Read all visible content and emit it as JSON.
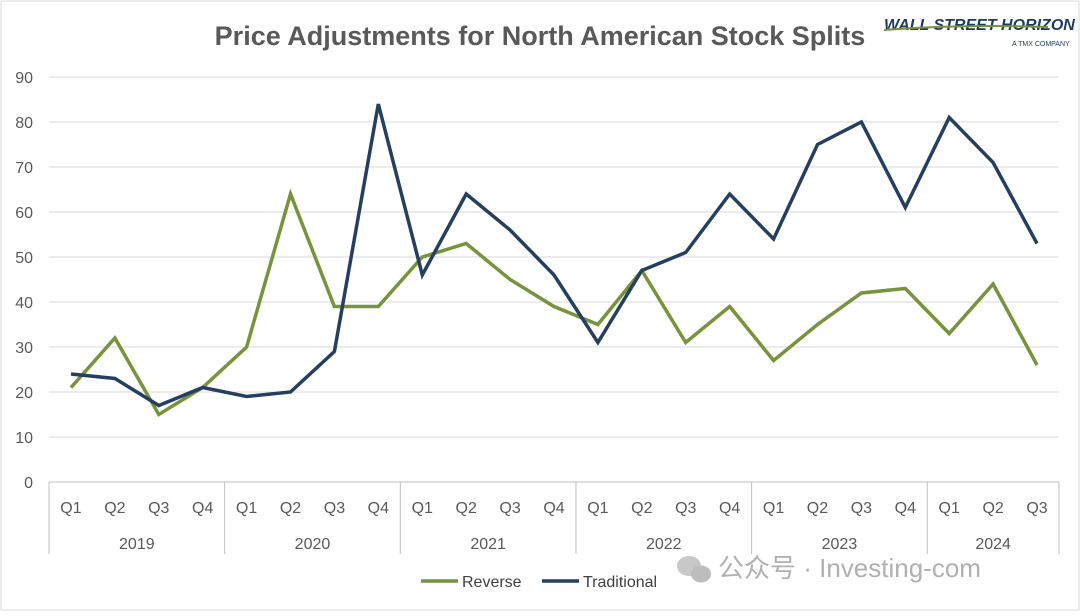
{
  "chart_data": {
    "type": "line",
    "title": "Price Adjustments for North American Stock Splits",
    "xlabel": "",
    "ylabel": "",
    "ylim": [
      0,
      90
    ],
    "yticks": [
      "0",
      "10",
      "20",
      "30",
      "40",
      "50",
      "60",
      "70",
      "80",
      "90"
    ],
    "grid": true,
    "legend_position": "bottom",
    "categories": [
      "Q1",
      "Q2",
      "Q3",
      "Q4",
      "Q1",
      "Q2",
      "Q3",
      "Q4",
      "Q1",
      "Q2",
      "Q3",
      "Q4",
      "Q1",
      "Q2",
      "Q3",
      "Q4",
      "Q1",
      "Q2",
      "Q3",
      "Q4",
      "Q1",
      "Q2",
      "Q3"
    ],
    "years": [
      {
        "label": "2019",
        "quarters": 4
      },
      {
        "label": "2020",
        "quarters": 4
      },
      {
        "label": "2021",
        "quarters": 4
      },
      {
        "label": "2022",
        "quarters": 4
      },
      {
        "label": "2023",
        "quarters": 4
      },
      {
        "label": "2024",
        "quarters": 3
      }
    ],
    "series": [
      {
        "name": "Reverse",
        "color": "#77933c",
        "values": [
          21,
          32,
          15,
          21,
          30,
          64,
          39,
          39,
          50,
          53,
          45,
          39,
          35,
          47,
          31,
          39,
          27,
          35,
          42,
          43,
          33,
          44,
          26
        ]
      },
      {
        "name": "Traditional",
        "color": "#243f60",
        "values": [
          24,
          23,
          17,
          21,
          19,
          20,
          29,
          84,
          46,
          64,
          56,
          46,
          31,
          47,
          51,
          64,
          54,
          75,
          80,
          61,
          81,
          71,
          53
        ]
      }
    ]
  },
  "logo": {
    "main": "WALL STREET HORIZON",
    "sub": "A TMX COMPANY"
  },
  "watermark": "公众号 · Investing-com",
  "colors": {
    "grid": "#d9d9d9",
    "axis": "#bfbfbf",
    "text": "#595959"
  }
}
